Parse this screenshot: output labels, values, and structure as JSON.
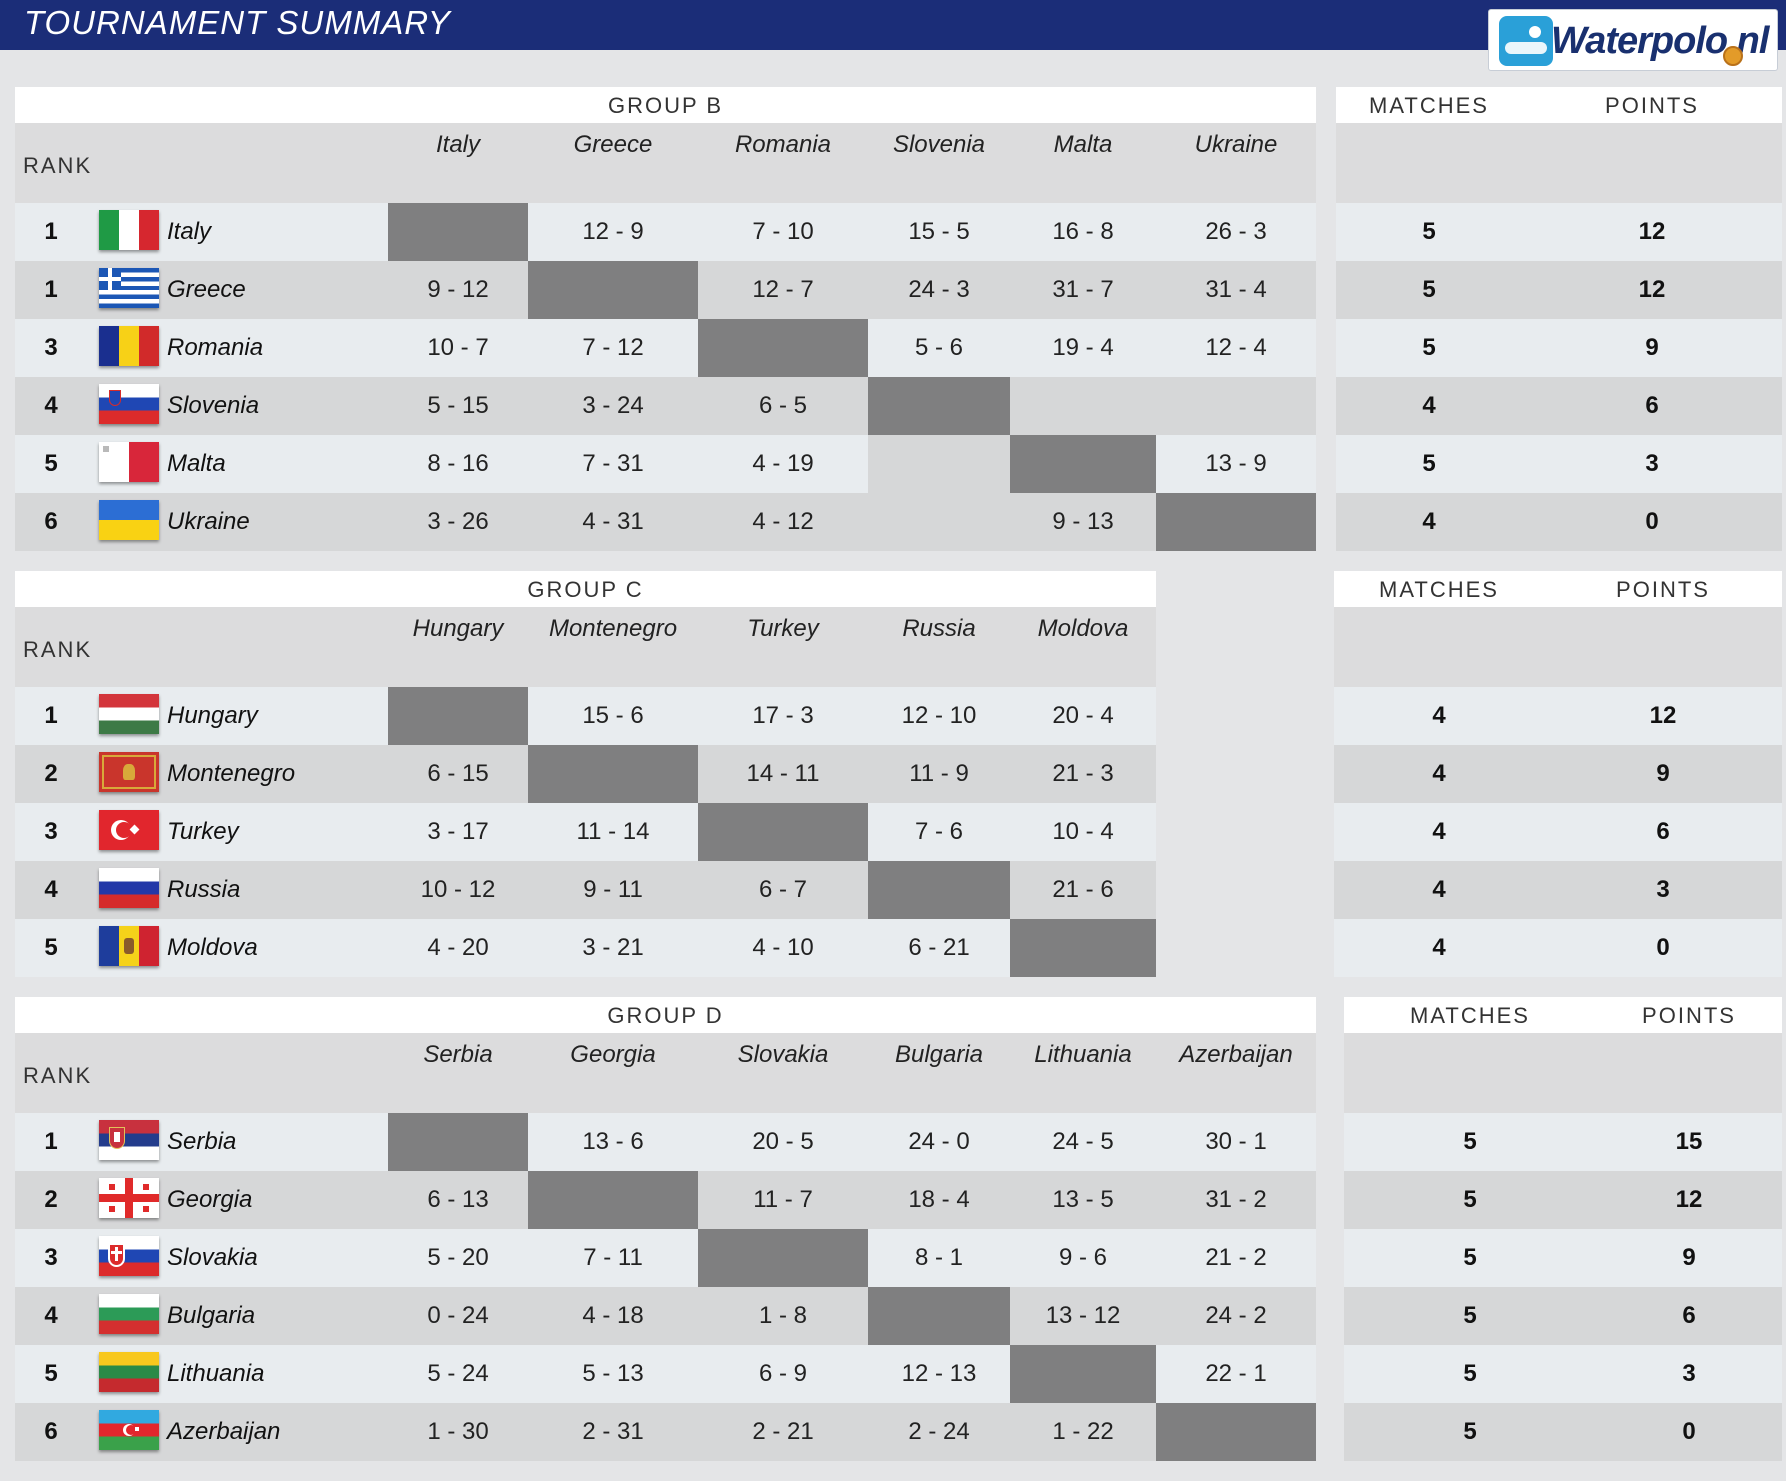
{
  "header": {
    "title": "TOURNAMENT SUMMARY",
    "logo_text": "Waterpolo.nl"
  },
  "labels": {
    "rank": "RANK",
    "matches": "MATCHES",
    "points": "POINTS"
  },
  "groups": [
    {
      "name": "GROUP B",
      "teams": [
        {
          "rank": "1",
          "name": "Italy",
          "flag": "italy",
          "results": [
            "",
            "12 - 9",
            "7 - 10",
            "15 - 5",
            "16 - 8",
            "26 - 3"
          ],
          "matches": "5",
          "points": "12"
        },
        {
          "rank": "1",
          "name": "Greece",
          "flag": "greece",
          "results": [
            "9 - 12",
            "",
            "12 - 7",
            "24 - 3",
            "31 - 7",
            "31 - 4"
          ],
          "matches": "5",
          "points": "12"
        },
        {
          "rank": "3",
          "name": "Romania",
          "flag": "romania",
          "results": [
            "10 - 7",
            "7 - 12",
            "",
            "5 - 6",
            "19 - 4",
            "12 - 4"
          ],
          "matches": "5",
          "points": "9"
        },
        {
          "rank": "4",
          "name": "Slovenia",
          "flag": "slovenia",
          "results": [
            "5 - 15",
            "3 - 24",
            "6 - 5",
            "",
            "",
            ""
          ],
          "matches": "4",
          "points": "6"
        },
        {
          "rank": "5",
          "name": "Malta",
          "flag": "malta",
          "results": [
            "8 - 16",
            "7 - 31",
            "4 - 19",
            "",
            "",
            "13 - 9"
          ],
          "matches": "5",
          "points": "3"
        },
        {
          "rank": "6",
          "name": "Ukraine",
          "flag": "ukraine",
          "results": [
            "3 - 26",
            "4 - 31",
            "4 - 12",
            "",
            "9 - 13",
            ""
          ],
          "matches": "4",
          "points": "0"
        }
      ]
    },
    {
      "name": "GROUP C",
      "teams": [
        {
          "rank": "1",
          "name": "Hungary",
          "flag": "hungary",
          "results": [
            "",
            "15 - 6",
            "17 - 3",
            "12 - 10",
            "20 - 4"
          ],
          "matches": "4",
          "points": "12"
        },
        {
          "rank": "2",
          "name": "Montenegro",
          "flag": "montenegro",
          "results": [
            "6 - 15",
            "",
            "14 - 11",
            "11 - 9",
            "21 - 3"
          ],
          "matches": "4",
          "points": "9"
        },
        {
          "rank": "3",
          "name": "Turkey",
          "flag": "turkey",
          "results": [
            "3 - 17",
            "11 - 14",
            "",
            "7 - 6",
            "10 - 4"
          ],
          "matches": "4",
          "points": "6"
        },
        {
          "rank": "4",
          "name": "Russia",
          "flag": "russia",
          "results": [
            "10 - 12",
            "9 - 11",
            "6 - 7",
            "",
            "21 - 6"
          ],
          "matches": "4",
          "points": "3"
        },
        {
          "rank": "5",
          "name": "Moldova",
          "flag": "moldova",
          "results": [
            "4 - 20",
            "3 - 21",
            "4 - 10",
            "6 - 21",
            ""
          ],
          "matches": "4",
          "points": "0"
        }
      ]
    },
    {
      "name": "GROUP D",
      "teams": [
        {
          "rank": "1",
          "name": "Serbia",
          "flag": "serbia",
          "results": [
            "",
            "13 - 6",
            "20 - 5",
            "24 - 0",
            "24 - 5",
            "30 - 1"
          ],
          "matches": "5",
          "points": "15"
        },
        {
          "rank": "2",
          "name": "Georgia",
          "flag": "georgia",
          "results": [
            "6 - 13",
            "",
            "11 - 7",
            "18 - 4",
            "13 - 5",
            "31 - 2"
          ],
          "matches": "5",
          "points": "12"
        },
        {
          "rank": "3",
          "name": "Slovakia",
          "flag": "slovakia",
          "results": [
            "5 - 20",
            "7 - 11",
            "",
            "8 - 1",
            "9 - 6",
            "21 - 2"
          ],
          "matches": "5",
          "points": "9"
        },
        {
          "rank": "4",
          "name": "Bulgaria",
          "flag": "bulgaria",
          "results": [
            "0 - 24",
            "4 - 18",
            "1 - 8",
            "",
            "13 - 12",
            "24 - 2"
          ],
          "matches": "5",
          "points": "6"
        },
        {
          "rank": "5",
          "name": "Lithuania",
          "flag": "lithuania",
          "results": [
            "5 - 24",
            "5 - 13",
            "6 - 9",
            "12 - 13",
            "",
            "22 - 1"
          ],
          "matches": "5",
          "points": "3"
        },
        {
          "rank": "6",
          "name": "Azerbaijan",
          "flag": "azerbaijan",
          "results": [
            "1 - 30",
            "2 - 31",
            "2 - 21",
            "2 - 24",
            "1 - 22",
            ""
          ],
          "matches": "5",
          "points": "0"
        }
      ]
    }
  ]
}
